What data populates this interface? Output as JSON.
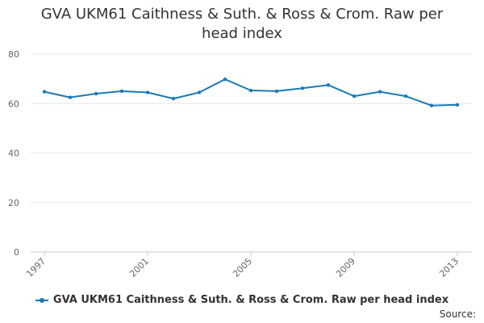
{
  "chart_data": {
    "type": "line",
    "title": "GVA UKM61 Caithness & Suth. & Ross & Crom. Raw per head index",
    "title_lines": [
      "GVA UKM61 Caithness & Suth. & Ross & Crom. Raw per",
      "head index"
    ],
    "xlabel": "",
    "ylabel": "",
    "ylim": [
      0,
      80
    ],
    "yticks": [
      0,
      20,
      40,
      60,
      80
    ],
    "xticks": [
      1997,
      2001,
      2005,
      2009,
      2013
    ],
    "grid": true,
    "legend_position": "bottom",
    "series": [
      {
        "name": "GVA UKM61 Caithness & Suth. & Ross & Crom. Raw per head index",
        "color": "#1a7ab8",
        "x": [
          1997,
          1998,
          1999,
          2000,
          2001,
          2002,
          2003,
          2004,
          2005,
          2006,
          2007,
          2008,
          2009,
          2010,
          2011,
          2012,
          2013
        ],
        "values": [
          64.8,
          62.5,
          64.0,
          65.0,
          64.5,
          62.0,
          64.5,
          69.8,
          65.3,
          65.0,
          66.2,
          67.5,
          63.0,
          64.8,
          63.0,
          59.2,
          59.5
        ]
      }
    ]
  },
  "source_label": "Source:"
}
